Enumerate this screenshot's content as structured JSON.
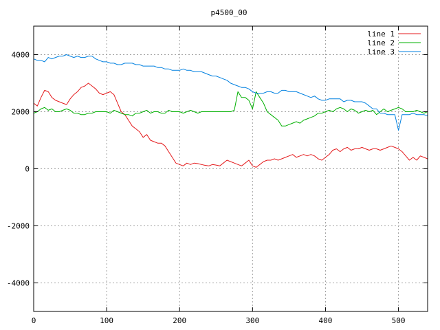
{
  "chart_data": {
    "type": "line",
    "title": "p4500_00",
    "xlim": [
      0,
      540
    ],
    "ylim": [
      -5000,
      5000
    ],
    "xticks": [
      0,
      100,
      200,
      300,
      400,
      500
    ],
    "yticks": [
      -4000,
      -2000,
      0,
      2000,
      4000
    ],
    "x_tick_labels": [
      "0",
      "100",
      "200",
      "300",
      "400",
      "500"
    ],
    "y_tick_labels": [
      "-4000",
      "-2000",
      "0",
      "2000",
      "4000"
    ],
    "grid": true,
    "legend_position": "top-right",
    "series": [
      {
        "name": "line 1",
        "color": "#e41a1c",
        "x": [
          0,
          5,
          10,
          15,
          20,
          25,
          30,
          35,
          40,
          45,
          50,
          55,
          60,
          65,
          70,
          75,
          80,
          85,
          90,
          95,
          100,
          105,
          110,
          115,
          120,
          125,
          130,
          135,
          140,
          145,
          150,
          155,
          160,
          165,
          170,
          175,
          180,
          185,
          190,
          195,
          200,
          205,
          210,
          215,
          220,
          225,
          230,
          235,
          240,
          245,
          250,
          255,
          260,
          265,
          270,
          275,
          280,
          285,
          290,
          295,
          300,
          305,
          310,
          315,
          320,
          325,
          330,
          335,
          340,
          345,
          350,
          355,
          360,
          365,
          370,
          375,
          380,
          385,
          390,
          395,
          400,
          405,
          410,
          415,
          420,
          425,
          430,
          435,
          440,
          445,
          450,
          455,
          460,
          465,
          470,
          475,
          480,
          485,
          490,
          495,
          500,
          505,
          510,
          515,
          520,
          525,
          530,
          535,
          540
        ],
        "y": [
          2300,
          2200,
          2500,
          2750,
          2700,
          2500,
          2400,
          2350,
          2300,
          2250,
          2450,
          2600,
          2700,
          2850,
          2900,
          3000,
          2900,
          2800,
          2650,
          2600,
          2650,
          2700,
          2600,
          2300,
          2000,
          1900,
          1700,
          1500,
          1400,
          1300,
          1100,
          1200,
          1000,
          950,
          900,
          900,
          800,
          600,
          400,
          200,
          150,
          100,
          200,
          150,
          200,
          180,
          150,
          120,
          100,
          150,
          130,
          100,
          200,
          300,
          250,
          200,
          150,
          100,
          200,
          300,
          100,
          50,
          150,
          250,
          300,
          300,
          350,
          300,
          350,
          400,
          450,
          500,
          400,
          450,
          500,
          450,
          500,
          450,
          350,
          300,
          400,
          500,
          650,
          700,
          600,
          700,
          750,
          650,
          700,
          700,
          750,
          700,
          650,
          700,
          700,
          650,
          700,
          750,
          800,
          750,
          700,
          600,
          450,
          300,
          400,
          300,
          450,
          400,
          350
        ]
      },
      {
        "name": "line 2",
        "color": "#00b000",
        "x": [
          0,
          5,
          10,
          15,
          20,
          25,
          30,
          35,
          40,
          45,
          50,
          55,
          60,
          65,
          70,
          75,
          80,
          85,
          90,
          95,
          100,
          105,
          110,
          115,
          120,
          125,
          130,
          135,
          140,
          145,
          150,
          155,
          160,
          165,
          170,
          175,
          180,
          185,
          190,
          195,
          200,
          205,
          210,
          215,
          220,
          225,
          230,
          235,
          240,
          245,
          250,
          255,
          260,
          265,
          270,
          275,
          280,
          285,
          290,
          295,
          300,
          305,
          310,
          315,
          320,
          325,
          330,
          335,
          340,
          345,
          350,
          355,
          360,
          365,
          370,
          375,
          380,
          385,
          390,
          395,
          400,
          405,
          410,
          415,
          420,
          425,
          430,
          435,
          440,
          445,
          450,
          455,
          460,
          465,
          470,
          475,
          480,
          485,
          490,
          495,
          500,
          505,
          510,
          515,
          520,
          525,
          530,
          535,
          540
        ],
        "y": [
          1950,
          2000,
          2100,
          2150,
          2050,
          2100,
          2000,
          2000,
          2050,
          2100,
          2050,
          1950,
          1950,
          1900,
          1900,
          1950,
          1950,
          2000,
          2000,
          2000,
          2000,
          1950,
          2050,
          2000,
          1950,
          1900,
          1900,
          1850,
          1950,
          1950,
          2000,
          2050,
          1950,
          2000,
          2000,
          1950,
          1950,
          2050,
          2000,
          2000,
          2000,
          1950,
          2000,
          2050,
          2000,
          1950,
          2000,
          2000,
          2000,
          2000,
          2000,
          2000,
          2000,
          2000,
          2000,
          2050,
          2700,
          2500,
          2500,
          2400,
          2100,
          2700,
          2500,
          2300,
          2000,
          1900,
          1800,
          1700,
          1500,
          1500,
          1550,
          1600,
          1650,
          1600,
          1700,
          1750,
          1800,
          1850,
          1950,
          1950,
          2000,
          2050,
          2000,
          2100,
          2150,
          2100,
          2000,
          2100,
          2050,
          1950,
          2000,
          2050,
          2000,
          2050,
          1900,
          2000,
          2100,
          2000,
          2050,
          2100,
          2150,
          2100,
          2000,
          2000,
          2000,
          2050,
          2000,
          1950,
          2000
        ]
      },
      {
        "name": "line 3",
        "color": "#0080e0",
        "x": [
          0,
          5,
          10,
          15,
          20,
          25,
          30,
          35,
          40,
          45,
          50,
          55,
          60,
          65,
          70,
          75,
          80,
          85,
          90,
          95,
          100,
          105,
          110,
          115,
          120,
          125,
          130,
          135,
          140,
          145,
          150,
          155,
          160,
          165,
          170,
          175,
          180,
          185,
          190,
          195,
          200,
          205,
          210,
          215,
          220,
          225,
          230,
          235,
          240,
          245,
          250,
          255,
          260,
          265,
          270,
          275,
          280,
          285,
          290,
          295,
          300,
          305,
          310,
          315,
          320,
          325,
          330,
          335,
          340,
          345,
          350,
          355,
          360,
          365,
          370,
          375,
          380,
          385,
          390,
          395,
          400,
          405,
          410,
          415,
          420,
          425,
          430,
          435,
          440,
          445,
          450,
          455,
          460,
          465,
          470,
          475,
          480,
          485,
          490,
          495,
          500,
          505,
          510,
          515,
          520,
          525,
          530,
          535,
          540
        ],
        "y": [
          3850,
          3800,
          3800,
          3750,
          3900,
          3850,
          3900,
          3950,
          3950,
          4000,
          3950,
          3900,
          3950,
          3900,
          3900,
          3950,
          3950,
          3850,
          3800,
          3750,
          3750,
          3700,
          3700,
          3650,
          3650,
          3700,
          3700,
          3700,
          3650,
          3650,
          3600,
          3600,
          3600,
          3600,
          3550,
          3550,
          3500,
          3500,
          3450,
          3450,
          3450,
          3500,
          3450,
          3450,
          3400,
          3400,
          3400,
          3350,
          3300,
          3250,
          3250,
          3200,
          3150,
          3100,
          3000,
          2950,
          2900,
          2850,
          2850,
          2800,
          2700,
          2650,
          2650,
          2650,
          2700,
          2700,
          2650,
          2650,
          2750,
          2750,
          2700,
          2700,
          2700,
          2650,
          2600,
          2550,
          2500,
          2550,
          2450,
          2400,
          2400,
          2450,
          2450,
          2450,
          2450,
          2350,
          2400,
          2400,
          2350,
          2350,
          2350,
          2300,
          2200,
          2100,
          2100,
          1950,
          1950,
          1900,
          1900,
          1900,
          1350,
          1900,
          1900,
          1900,
          1950,
          1900,
          1900,
          1900,
          1850
        ]
      }
    ]
  }
}
